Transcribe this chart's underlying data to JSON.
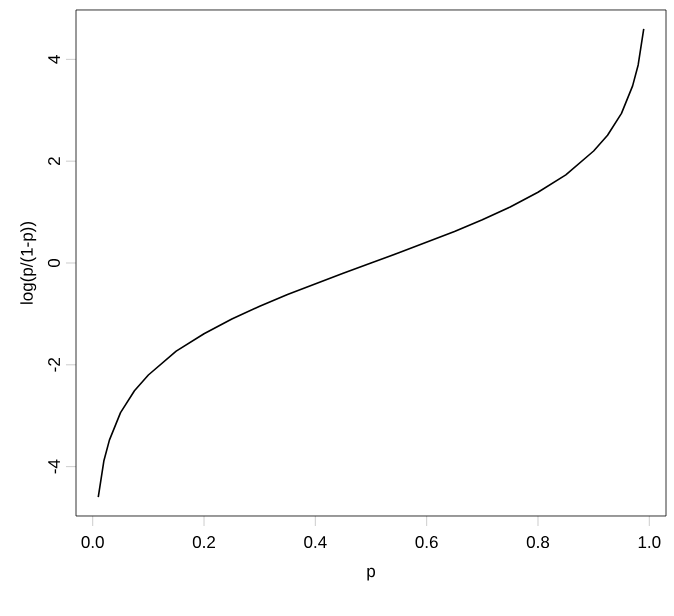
{
  "chart_data": {
    "type": "line",
    "xlabel": "p",
    "ylabel": "log(p/(1-p))",
    "x": [
      0.01,
      0.02,
      0.03,
      0.05,
      0.075,
      0.1,
      0.15,
      0.2,
      0.25,
      0.3,
      0.35,
      0.4,
      0.45,
      0.5,
      0.55,
      0.6,
      0.65,
      0.7,
      0.75,
      0.8,
      0.85,
      0.9,
      0.925,
      0.95,
      0.97,
      0.98,
      0.99
    ],
    "values": [
      -4.6,
      -3.89,
      -3.48,
      -2.94,
      -2.51,
      -2.2,
      -1.73,
      -1.39,
      -1.1,
      -0.85,
      -0.62,
      -0.41,
      -0.2,
      0,
      0.2,
      0.41,
      0.62,
      0.85,
      1.1,
      1.39,
      1.73,
      2.2,
      2.51,
      2.94,
      3.48,
      3.89,
      4.6
    ],
    "color": "#000000",
    "xlim": [
      -0.03,
      1.03
    ],
    "ylim": [
      -4.97,
      4.97
    ],
    "xticks": [
      {
        "value": 0,
        "label": "0.0"
      },
      {
        "value": 0.2,
        "label": "0.2"
      },
      {
        "value": 0.4,
        "label": "0.4"
      },
      {
        "value": 0.6,
        "label": "0.6"
      },
      {
        "value": 0.8,
        "label": "0.8"
      },
      {
        "value": 1,
        "label": "1.0"
      }
    ],
    "yticks": [
      -4,
      -2,
      0,
      2,
      4
    ]
  }
}
